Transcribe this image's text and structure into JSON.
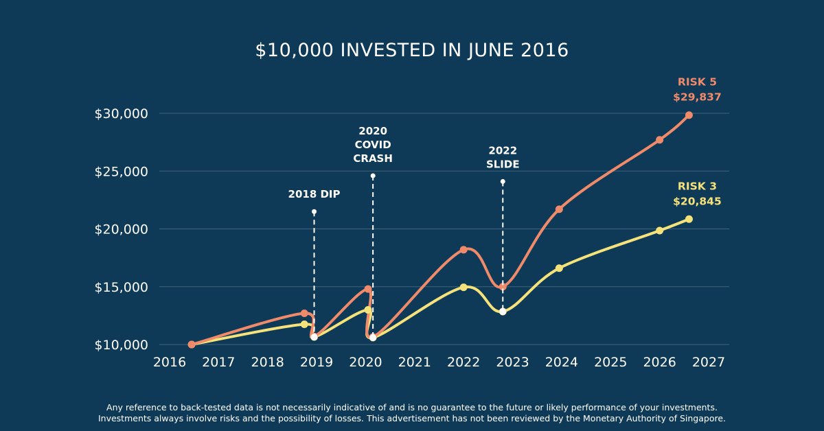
{
  "chart_data": {
    "type": "line",
    "title": "$10,000 INVESTED IN JUNE 2016",
    "xlabel": "",
    "ylabel": "",
    "xlim": [
      2015.9,
      2027.2
    ],
    "ylim": [
      10000,
      30000
    ],
    "x_ticks": [
      2016,
      2017,
      2018,
      2019,
      2020,
      2021,
      2022,
      2023,
      2024,
      2025,
      2026,
      2027
    ],
    "y_ticks": [
      10000,
      15000,
      20000,
      25000,
      30000
    ],
    "y_tick_labels": [
      "$10,000",
      "$15,000",
      "$20,000",
      "$25,000",
      "$30,000"
    ],
    "grid": "horizontal",
    "series": [
      {
        "name": "RISK 5",
        "color": "#ef8a6a",
        "points": [
          [
            2016.45,
            10000
          ],
          [
            2018.75,
            12700
          ],
          [
            2018.95,
            10700
          ],
          [
            2020.05,
            14800
          ],
          [
            2020.15,
            10650
          ],
          [
            2022.0,
            18200
          ],
          [
            2022.8,
            15000
          ],
          [
            2023.95,
            21700
          ],
          [
            2026.0,
            27700
          ],
          [
            2026.6,
            29837
          ]
        ],
        "end_label": "RISK 5",
        "end_value_label": "$29,837"
      },
      {
        "name": "RISK 3",
        "color": "#f5e27a",
        "points": [
          [
            2016.45,
            10000
          ],
          [
            2018.75,
            11750
          ],
          [
            2018.95,
            10650
          ],
          [
            2020.05,
            13000
          ],
          [
            2020.15,
            10600
          ],
          [
            2022.0,
            14950
          ],
          [
            2022.8,
            12850
          ],
          [
            2023.95,
            16600
          ],
          [
            2026.0,
            19850
          ],
          [
            2026.6,
            20845
          ]
        ],
        "end_label": "RISK 3",
        "end_value_label": "$20,845"
      }
    ],
    "annotations": [
      {
        "x": 2018.95,
        "y_top": 21500,
        "lines": [
          "2018 DIP"
        ]
      },
      {
        "x": 2020.15,
        "y_top": 24600,
        "lines": [
          "2020",
          "COVID",
          "CRASH"
        ]
      },
      {
        "x": 2022.8,
        "y_top": 24100,
        "lines": [
          "2022",
          "SLIDE"
        ]
      }
    ]
  },
  "disclaimer": {
    "line1": "Any reference to back-tested data is not necessarily indicative of and is no guarantee to the future or likely performance of your investments.",
    "line2": "Investments always involve risks and the possibility of losses. This advertisement has not been reviewed by the Monetary Authority of Singapore."
  }
}
